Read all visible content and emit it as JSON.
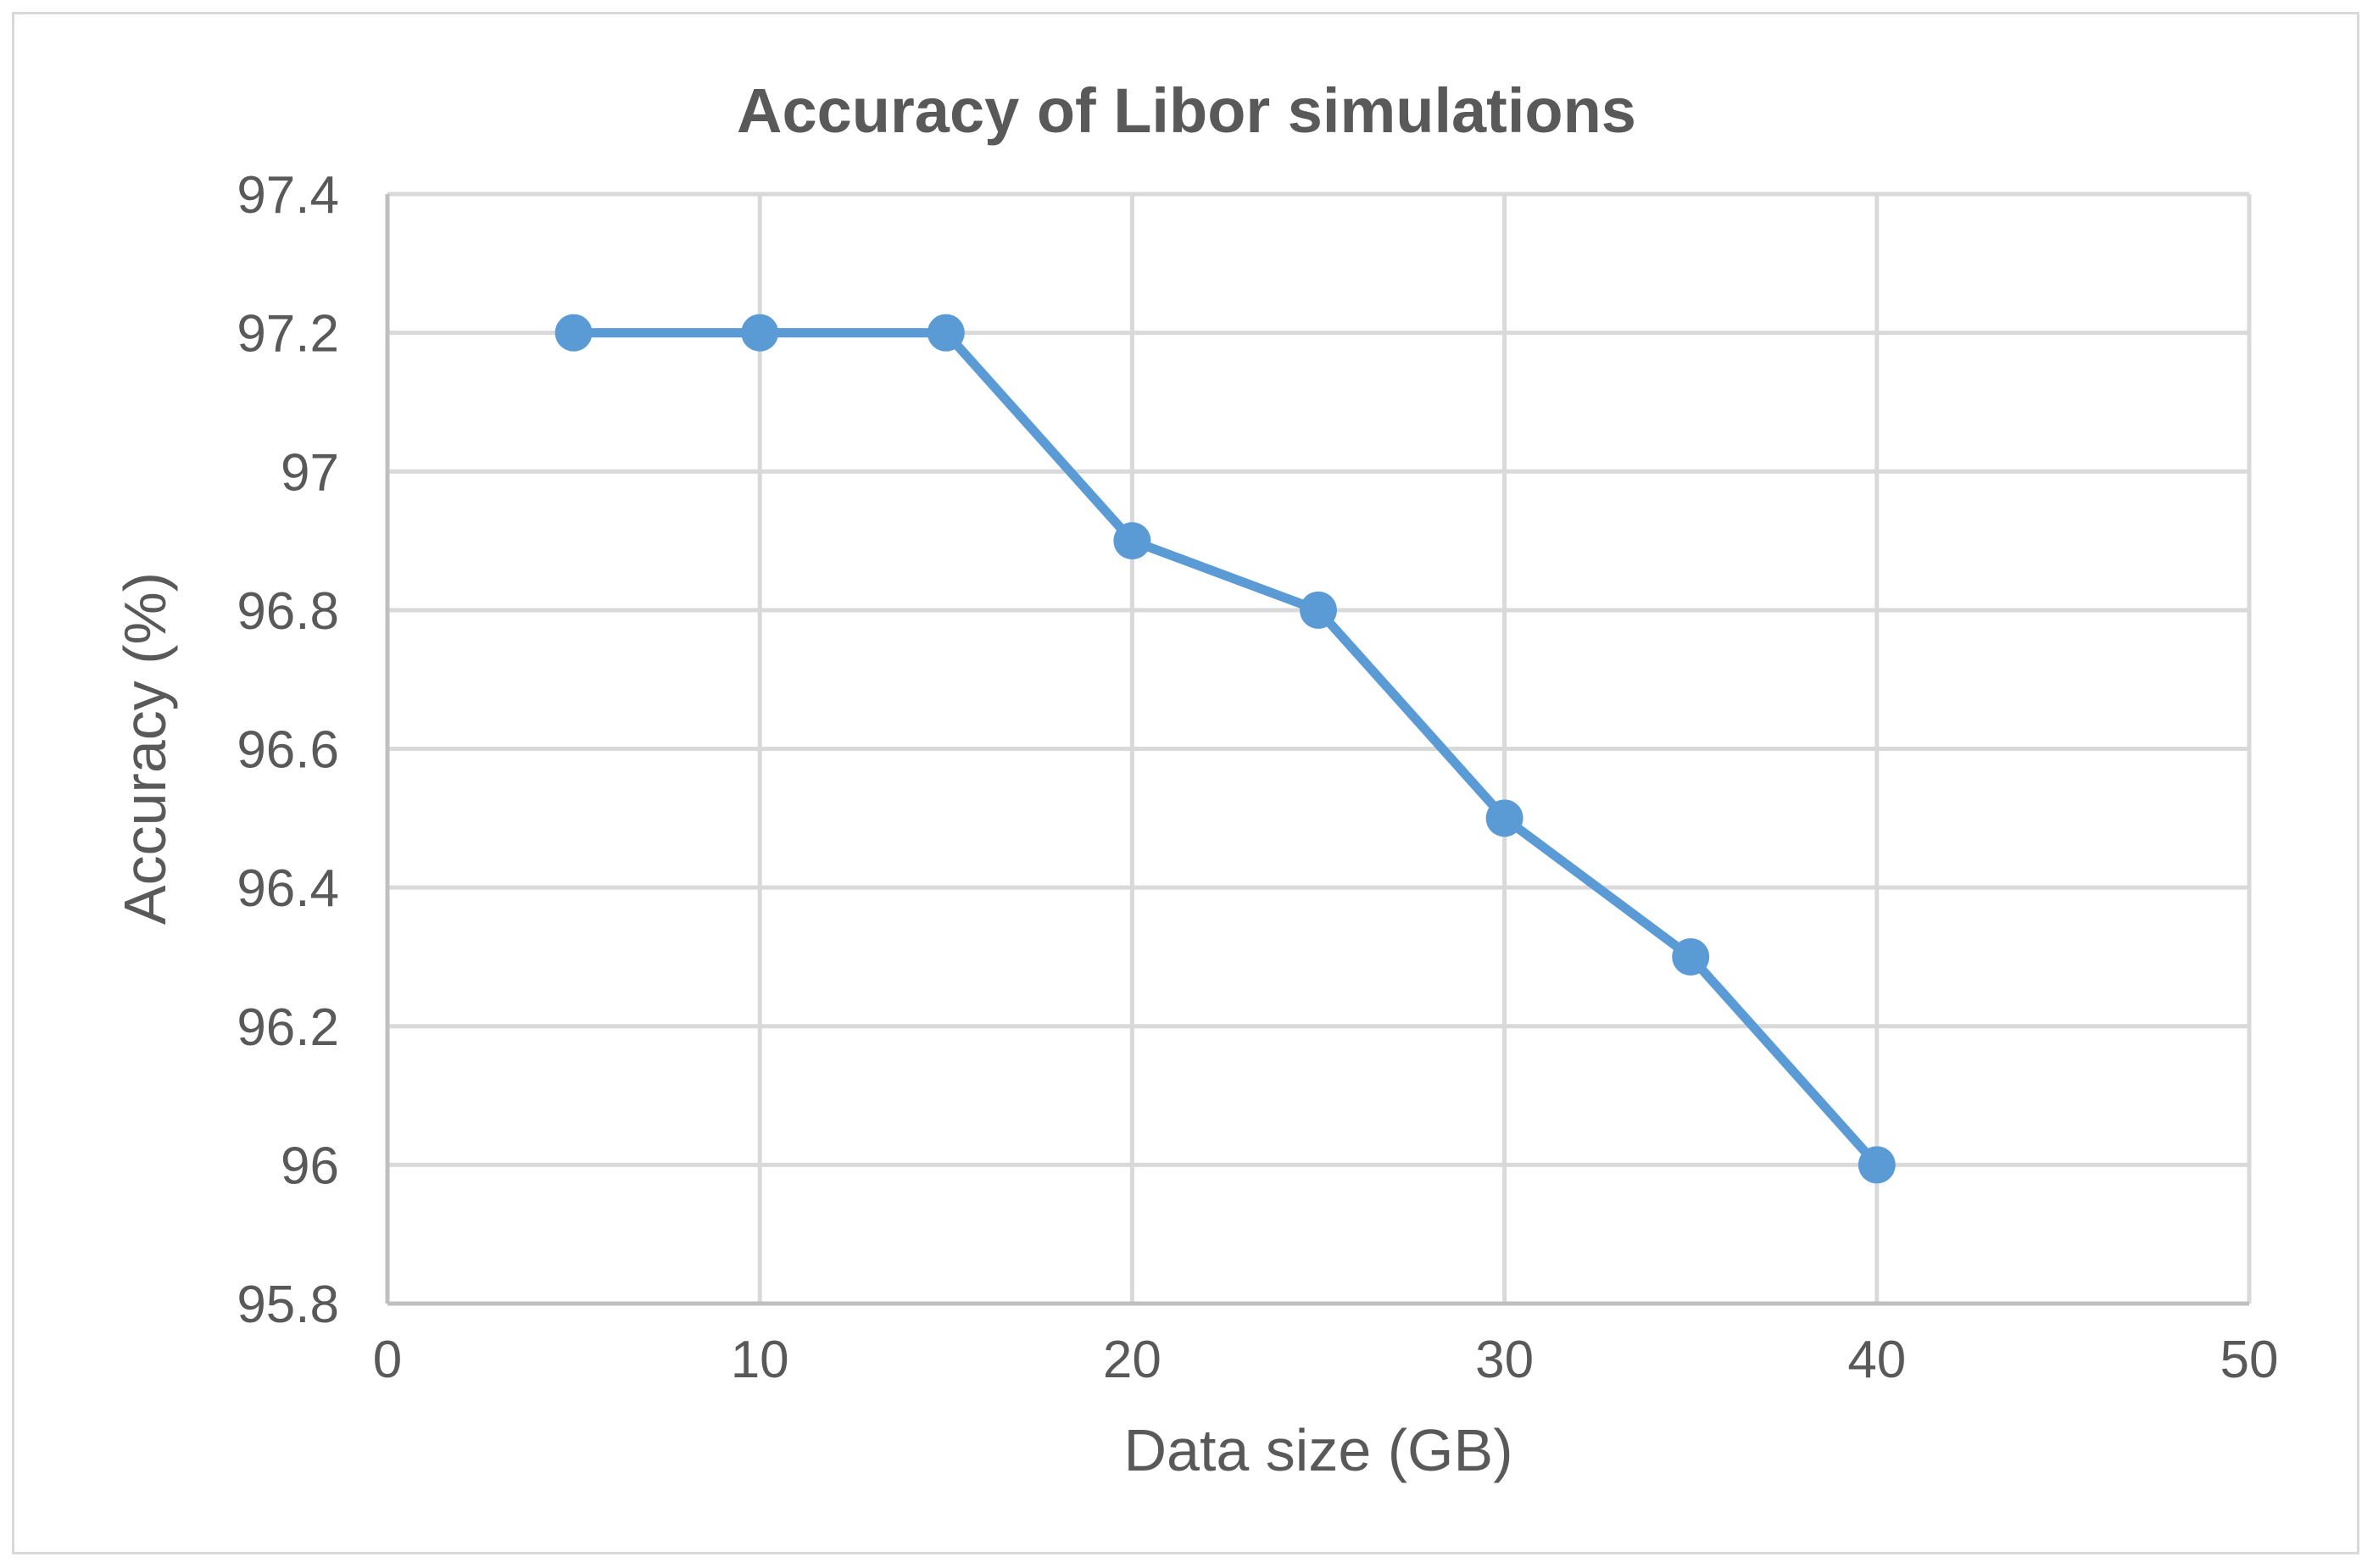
{
  "chart_data": {
    "type": "line",
    "title": "Accuracy of Libor simulations",
    "xlabel": "Data size (GB)",
    "ylabel": "Accuracy (%)",
    "xlim": [
      0,
      50
    ],
    "ylim": [
      95.8,
      97.4
    ],
    "x_ticks": [
      "0",
      "10",
      "20",
      "30",
      "40",
      "50"
    ],
    "y_ticks": [
      "95.8",
      "96",
      "96.2",
      "96.4",
      "96.6",
      "96.8",
      "97",
      "97.2",
      "97.4"
    ],
    "grid": true,
    "legend": "none",
    "series": [
      {
        "name": "Accuracy",
        "color": "#5b9bd5",
        "x": [
          5,
          10,
          15,
          20,
          25,
          30,
          35,
          40
        ],
        "values": [
          97.2,
          97.2,
          97.2,
          96.9,
          96.8,
          96.5,
          96.3,
          96.0
        ]
      }
    ]
  },
  "colors": {
    "line": "#5b9bd5",
    "grid": "#d9d9d9",
    "text": "#595959"
  }
}
